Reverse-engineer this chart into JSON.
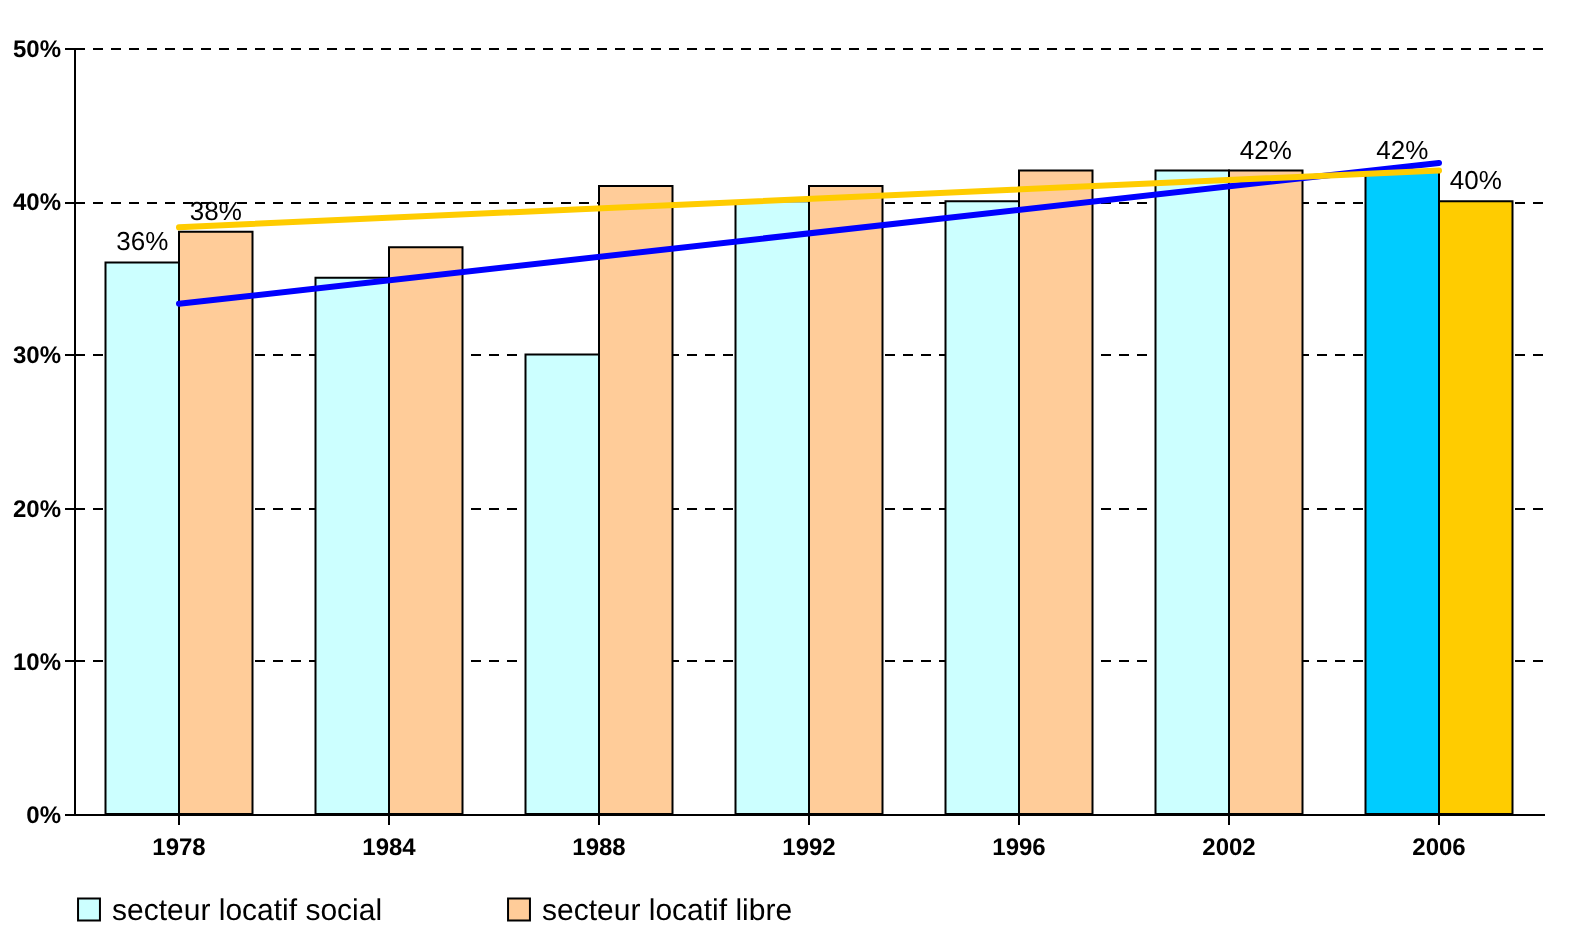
{
  "chart_data": {
    "type": "bar",
    "categories": [
      "1978",
      "1984",
      "1988",
      "1992",
      "1996",
      "2002",
      "2006"
    ],
    "series": [
      {
        "name": "secteur locatif social",
        "color": "#ccffff",
        "colors": [
          "#ccffff",
          "#ccffff",
          "#ccffff",
          "#ccffff",
          "#ccffff",
          "#ccffff",
          "#00ccff"
        ],
        "values": [
          36,
          35,
          30,
          40,
          40,
          42,
          42
        ],
        "value_labels": [
          "36%",
          null,
          null,
          null,
          null,
          null,
          "42%"
        ]
      },
      {
        "name": "secteur locatif libre",
        "color": "#ffcc99",
        "colors": [
          "#ffcc99",
          "#ffcc99",
          "#ffcc99",
          "#ffcc99",
          "#ffcc99",
          "#ffcc99",
          "#ffcc00"
        ],
        "values": [
          38,
          37,
          41,
          41,
          42,
          42,
          40
        ],
        "value_labels": [
          "38%",
          null,
          null,
          null,
          null,
          "42%",
          "40%"
        ]
      },
      {
        "type": "line",
        "color": "#0000ff",
        "values": [
          33.3,
          null,
          null,
          null,
          null,
          null,
          42.5
        ]
      },
      {
        "type": "line",
        "color": "#ffcc00",
        "values": [
          38.3,
          null,
          null,
          null,
          null,
          null,
          42
        ]
      }
    ],
    "ylim": [
      0,
      50
    ],
    "yticks": [
      {
        "value": 0,
        "label": "0%"
      },
      {
        "value": 10,
        "label": "10%"
      },
      {
        "value": 20,
        "label": "20%"
      },
      {
        "value": 30,
        "label": "30%"
      },
      {
        "value": 40,
        "label": "40%"
      },
      {
        "value": 50,
        "label": "50%"
      }
    ],
    "grid": "y",
    "legend": "bottom"
  }
}
